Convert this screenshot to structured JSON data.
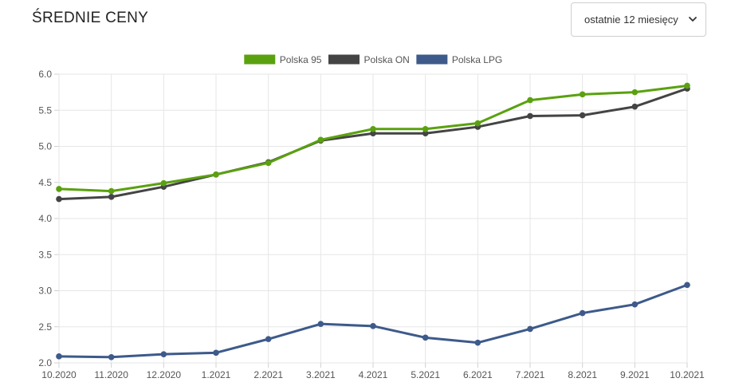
{
  "header": {
    "title": "ŚREDNIE CENY",
    "period_select": {
      "value": "ostatnie 12 miesięcy",
      "icon": "chevron-down-icon"
    }
  },
  "chart_data": {
    "type": "line",
    "categories": [
      "10.2020",
      "11.2020",
      "12.2020",
      "1.2021",
      "2.2021",
      "3.2021",
      "4.2021",
      "5.2021",
      "6.2021",
      "7.2021",
      "8.2021",
      "9.2021",
      "10.2021"
    ],
    "series": [
      {
        "name": "Polska 95",
        "color": "#5aa10f",
        "values": [
          4.41,
          4.38,
          4.49,
          4.61,
          4.77,
          5.09,
          5.24,
          5.24,
          5.32,
          5.64,
          5.72,
          5.75,
          5.84
        ]
      },
      {
        "name": "Polska ON",
        "color": "#444444",
        "values": [
          4.27,
          4.3,
          4.44,
          4.61,
          4.78,
          5.08,
          5.18,
          5.18,
          5.27,
          5.42,
          5.43,
          5.55,
          5.8
        ]
      },
      {
        "name": "Polska LPG",
        "color": "#3d5a8a",
        "values": [
          2.09,
          2.08,
          2.12,
          2.14,
          2.33,
          2.54,
          2.51,
          2.35,
          2.28,
          2.47,
          2.69,
          2.81,
          3.08
        ]
      }
    ],
    "yticks": [
      "2.0",
      "2.5",
      "3.0",
      "3.5",
      "4.0",
      "4.5",
      "5.0",
      "5.5",
      "6.0"
    ],
    "ylim": [
      2.0,
      6.0
    ],
    "grid": true,
    "legend_position": "top-center"
  }
}
